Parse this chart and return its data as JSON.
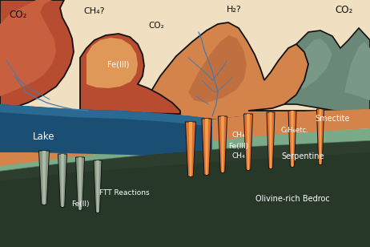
{
  "figsize": [
    4.62,
    3.08
  ],
  "dpi": 100,
  "colors": {
    "sky": "#f0dfc0",
    "rock_red_dark": "#b84c30",
    "rock_red_mid": "#c86040",
    "rock_orange": "#d4834a",
    "rock_orange_light": "#e09858",
    "rock_brown_inner": "#c07040",
    "mountain_teal_dark": "#6a8878",
    "mountain_teal_mid": "#7a9888",
    "mountain_teal_light": "#8aaa98",
    "lake_dark": "#1a4e72",
    "lake_mid": "#2060882",
    "smectite": "#d4834a",
    "serpentine_light": "#7aaa88",
    "serpentine_dark": "#4a7058",
    "bedrock_dark": "#283828",
    "bedrock_mid": "#2e3e2e",
    "crack_orange": "#e07030",
    "crack_light": "#f0a050",
    "crack_grey": "#8a9888",
    "crack_grey_light": "#aabba8",
    "outline": "#111111",
    "river_blue": "#4878a8",
    "text_dark": "#111111",
    "text_white": "#ffffff",
    "text_cream": "#f0e8d0"
  },
  "labels": {
    "co2_tl": "CO₂",
    "ch4_tm": "CH₄?",
    "co2_tm": "CO₂",
    "h2_tr": "H₂?",
    "co2_tr": "CO₂",
    "fe3_rock": "Fe(III)",
    "lake": "Lake",
    "smectite": "Smectite",
    "ch4_upper": "CH₄",
    "c6h6": "C₆H₆etc.",
    "fe3_lower": "Fe(III)",
    "ch4_lower": "CH₄",
    "serpentine": "Serpentine",
    "ftt": "FTT Reactions",
    "fe2": "Fe(II)",
    "olivine": "Olivine-rich Bedroc"
  }
}
